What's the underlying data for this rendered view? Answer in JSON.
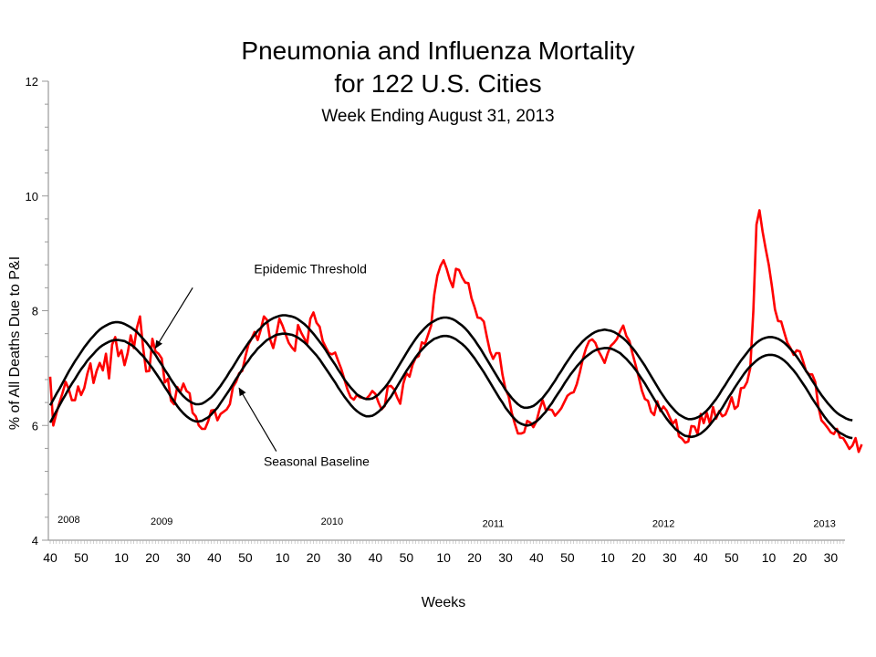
{
  "title_line1": "Pneumonia and Influenza Mortality",
  "title_line2": "for 122 U.S. Cities",
  "subtitle": "Week Ending  August  31, 2013",
  "chart_data": {
    "type": "line",
    "xlabel": "Weeks",
    "ylabel": "% of All Deaths Due to P&I",
    "ylim": [
      4,
      12
    ],
    "yticks": [
      4,
      6,
      8,
      10,
      12
    ],
    "x_start_week": 40,
    "n_weeks": 257,
    "xtick_labels": [
      "40",
      "50",
      "10",
      "20",
      "30",
      "40",
      "50",
      "10",
      "20",
      "30",
      "40",
      "50",
      "10",
      "20",
      "30",
      "40",
      "50",
      "10",
      "20",
      "30",
      "40",
      "50",
      "10",
      "20",
      "30"
    ],
    "xtick_index": [
      0,
      10,
      23,
      33,
      43,
      53,
      63,
      75,
      85,
      95,
      105,
      115,
      127,
      137,
      147,
      157,
      167,
      180,
      190,
      200,
      210,
      220,
      232,
      242,
      252
    ],
    "year_labels": [
      {
        "text": "2008",
        "week_index": 6,
        "y_value": 4.3
      },
      {
        "text": "2009",
        "week_index": 36,
        "y_value": 4.27
      },
      {
        "text": "2010",
        "week_index": 91,
        "y_value": 4.27
      },
      {
        "text": "2011",
        "week_index": 143,
        "y_value": 4.23
      },
      {
        "text": "2012",
        "week_index": 198,
        "y_value": 4.23
      },
      {
        "text": "2013",
        "week_index": 250,
        "y_value": 4.23
      }
    ],
    "annotations": [
      {
        "text": "Epidemic Threshold",
        "label_week": 84,
        "label_y": 8.65,
        "arrow_from": {
          "week": 46,
          "y": 8.4
        },
        "arrow_to": {
          "week": 34,
          "y": 7.35
        }
      },
      {
        "text": "Seasonal Baseline",
        "label_week": 86,
        "label_y": 5.3,
        "arrow_from": {
          "week": 73,
          "y": 5.55
        },
        "arrow_to": {
          "week": 61,
          "y": 6.65
        }
      }
    ],
    "series": [
      {
        "name": "Epidemic Threshold",
        "color": "#000000",
        "values": [
          6.35,
          6.45,
          6.55,
          6.64,
          6.74,
          6.84,
          6.94,
          7.03,
          7.12,
          7.2,
          7.28,
          7.36,
          7.43,
          7.5,
          7.56,
          7.62,
          7.67,
          7.71,
          7.74,
          7.77,
          7.79,
          7.8,
          7.8,
          7.79,
          7.77,
          7.74,
          7.71,
          7.67,
          7.63,
          7.57,
          7.51,
          7.45,
          7.38,
          7.3,
          7.23,
          7.14,
          7.06,
          6.97,
          6.89,
          6.8,
          6.72,
          6.64,
          6.57,
          6.51,
          6.46,
          6.42,
          6.39,
          6.37,
          6.37,
          6.38,
          6.41,
          6.45,
          6.49,
          6.55,
          6.62,
          6.69,
          6.77,
          6.85,
          6.94,
          7.02,
          7.11,
          7.2,
          7.28,
          7.36,
          7.44,
          7.51,
          7.58,
          7.65,
          7.7,
          7.76,
          7.8,
          7.84,
          7.87,
          7.89,
          7.91,
          7.92,
          7.92,
          7.91,
          7.9,
          7.88,
          7.85,
          7.81,
          7.77,
          7.72,
          7.66,
          7.6,
          7.53,
          7.46,
          7.39,
          7.31,
          7.22,
          7.14,
          7.06,
          6.97,
          6.89,
          6.8,
          6.73,
          6.66,
          6.6,
          6.54,
          6.51,
          6.48,
          6.46,
          6.46,
          6.47,
          6.5,
          6.54,
          6.6,
          6.66,
          6.73,
          6.81,
          6.9,
          6.99,
          7.08,
          7.17,
          7.26,
          7.35,
          7.43,
          7.51,
          7.58,
          7.64,
          7.7,
          7.75,
          7.79,
          7.82,
          7.85,
          7.87,
          7.88,
          7.88,
          7.87,
          7.85,
          7.82,
          7.78,
          7.74,
          7.69,
          7.63,
          7.56,
          7.49,
          7.41,
          7.33,
          7.24,
          7.15,
          7.06,
          6.97,
          6.88,
          6.79,
          6.71,
          6.62,
          6.55,
          6.48,
          6.42,
          6.37,
          6.33,
          6.31,
          6.31,
          6.32,
          6.34,
          6.38,
          6.43,
          6.48,
          6.55,
          6.62,
          6.7,
          6.78,
          6.87,
          6.95,
          7.04,
          7.12,
          7.2,
          7.28,
          7.35,
          7.41,
          7.47,
          7.52,
          7.56,
          7.6,
          7.63,
          7.65,
          7.66,
          7.67,
          7.66,
          7.65,
          7.63,
          7.6,
          7.56,
          7.52,
          7.47,
          7.41,
          7.35,
          7.28,
          7.2,
          7.12,
          7.04,
          6.95,
          6.86,
          6.77,
          6.68,
          6.59,
          6.51,
          6.43,
          6.36,
          6.3,
          6.24,
          6.19,
          6.16,
          6.13,
          6.11,
          6.11,
          6.12,
          6.14,
          6.17,
          6.21,
          6.26,
          6.32,
          6.39,
          6.46,
          6.54,
          6.63,
          6.71,
          6.8,
          6.88,
          6.97,
          7.05,
          7.13,
          7.2,
          7.27,
          7.34,
          7.39,
          7.44,
          7.48,
          7.51,
          7.53,
          7.54,
          7.54,
          7.53,
          7.51,
          7.48,
          7.44,
          7.39,
          7.33,
          7.27,
          7.2,
          7.12,
          7.04,
          6.95,
          6.87,
          6.78,
          6.7,
          6.61,
          6.53,
          6.46,
          6.39,
          6.33,
          6.27,
          6.22,
          6.18,
          6.15,
          6.12,
          6.1,
          6.09
        ]
      },
      {
        "name": "Seasonal Baseline",
        "color": "#000000",
        "values": [
          6.05,
          6.15,
          6.25,
          6.35,
          6.45,
          6.54,
          6.64,
          6.73,
          6.81,
          6.9,
          6.98,
          7.05,
          7.13,
          7.19,
          7.25,
          7.31,
          7.36,
          7.4,
          7.43,
          7.46,
          7.48,
          7.49,
          7.49,
          7.48,
          7.47,
          7.44,
          7.41,
          7.37,
          7.32,
          7.26,
          7.21,
          7.14,
          7.07,
          7.0,
          6.92,
          6.84,
          6.76,
          6.67,
          6.59,
          6.5,
          6.42,
          6.34,
          6.27,
          6.21,
          6.16,
          6.12,
          6.09,
          6.07,
          6.07,
          6.08,
          6.11,
          6.14,
          6.19,
          6.25,
          6.31,
          6.39,
          6.47,
          6.55,
          6.63,
          6.72,
          6.81,
          6.89,
          6.98,
          7.06,
          7.13,
          7.21,
          7.27,
          7.34,
          7.39,
          7.44,
          7.49,
          7.52,
          7.55,
          7.58,
          7.59,
          7.6,
          7.6,
          7.59,
          7.58,
          7.56,
          7.53,
          7.49,
          7.45,
          7.4,
          7.34,
          7.28,
          7.22,
          7.15,
          7.07,
          6.99,
          6.91,
          6.83,
          6.75,
          6.66,
          6.58,
          6.5,
          6.43,
          6.36,
          6.3,
          6.25,
          6.21,
          6.18,
          6.16,
          6.16,
          6.17,
          6.2,
          6.24,
          6.29,
          6.35,
          6.43,
          6.5,
          6.59,
          6.68,
          6.77,
          6.86,
          6.95,
          7.03,
          7.11,
          7.19,
          7.26,
          7.32,
          7.38,
          7.43,
          7.47,
          7.51,
          7.53,
          7.55,
          7.56,
          7.56,
          7.55,
          7.53,
          7.5,
          7.46,
          7.42,
          7.37,
          7.31,
          7.24,
          7.17,
          7.09,
          7.01,
          6.93,
          6.84,
          6.75,
          6.66,
          6.57,
          6.48,
          6.4,
          6.31,
          6.24,
          6.17,
          6.11,
          6.06,
          6.03,
          6.01,
          6.0,
          6.01,
          6.04,
          6.07,
          6.12,
          6.18,
          6.24,
          6.32,
          6.39,
          6.48,
          6.56,
          6.64,
          6.73,
          6.81,
          6.89,
          6.96,
          7.03,
          7.09,
          7.15,
          7.2,
          7.24,
          7.28,
          7.31,
          7.33,
          7.34,
          7.35,
          7.35,
          7.34,
          7.32,
          7.29,
          7.26,
          7.21,
          7.16,
          7.1,
          7.04,
          6.97,
          6.89,
          6.81,
          6.73,
          6.64,
          6.55,
          6.46,
          6.37,
          6.28,
          6.2,
          6.12,
          6.05,
          5.99,
          5.93,
          5.89,
          5.85,
          5.82,
          5.81,
          5.8,
          5.81,
          5.83,
          5.86,
          5.9,
          5.95,
          6.01,
          6.08,
          6.15,
          6.23,
          6.31,
          6.4,
          6.49,
          6.57,
          6.66,
          6.74,
          6.82,
          6.9,
          6.97,
          7.03,
          7.08,
          7.13,
          7.17,
          7.2,
          7.22,
          7.23,
          7.23,
          7.22,
          7.2,
          7.17,
          7.13,
          7.08,
          7.02,
          6.96,
          6.89,
          6.81,
          6.73,
          6.65,
          6.56,
          6.47,
          6.39,
          6.31,
          6.23,
          6.15,
          6.08,
          6.02,
          5.96,
          5.91,
          5.87,
          5.84,
          5.81,
          5.79,
          5.78
        ]
      },
      {
        "name": "P&I Mortality",
        "color": "#ff0000",
        "values": [
          6.85,
          6.0,
          6.21,
          6.4,
          6.57,
          6.76,
          6.63,
          6.44,
          6.44,
          6.68,
          6.53,
          6.65,
          6.9,
          7.08,
          6.74,
          6.95,
          7.09,
          6.96,
          7.25,
          6.82,
          7.41,
          7.54,
          7.21,
          7.31,
          7.05,
          7.26,
          7.57,
          7.35,
          7.7,
          7.9,
          7.36,
          6.94,
          6.95,
          7.51,
          7.29,
          7.25,
          7.17,
          6.75,
          6.81,
          6.43,
          6.37,
          6.67,
          6.58,
          6.73,
          6.6,
          6.56,
          6.22,
          6.16,
          6.0,
          5.94,
          5.94,
          6.07,
          6.26,
          6.27,
          6.09,
          6.2,
          6.24,
          6.28,
          6.37,
          6.67,
          6.76,
          6.91,
          6.95,
          7.2,
          7.41,
          7.51,
          7.63,
          7.49,
          7.67,
          7.9,
          7.84,
          7.5,
          7.35,
          7.58,
          7.86,
          7.74,
          7.59,
          7.44,
          7.36,
          7.3,
          7.75,
          7.62,
          7.52,
          7.43,
          7.86,
          7.97,
          7.79,
          7.72,
          7.47,
          7.36,
          7.26,
          7.24,
          7.27,
          7.12,
          6.98,
          6.8,
          6.62,
          6.49,
          6.45,
          6.53,
          6.49,
          6.48,
          6.46,
          6.52,
          6.6,
          6.55,
          6.4,
          6.28,
          6.34,
          6.68,
          6.69,
          6.63,
          6.49,
          6.38,
          6.73,
          6.91,
          6.85,
          7.06,
          7.18,
          7.21,
          7.45,
          7.42,
          7.58,
          7.74,
          8.28,
          8.61,
          8.78,
          8.88,
          8.73,
          8.54,
          8.41,
          8.73,
          8.71,
          8.58,
          8.49,
          8.48,
          8.22,
          8.06,
          7.88,
          7.87,
          7.81,
          7.54,
          7.29,
          7.16,
          7.26,
          7.26,
          6.89,
          6.63,
          6.51,
          6.22,
          6.03,
          5.86,
          5.86,
          5.88,
          6.08,
          6.05,
          5.97,
          6.07,
          6.28,
          6.44,
          6.27,
          6.28,
          6.27,
          6.17,
          6.23,
          6.3,
          6.41,
          6.52,
          6.56,
          6.58,
          6.72,
          6.93,
          7.17,
          7.35,
          7.47,
          7.5,
          7.44,
          7.3,
          7.2,
          7.09,
          7.26,
          7.39,
          7.44,
          7.51,
          7.64,
          7.74,
          7.56,
          7.47,
          7.25,
          7.05,
          6.84,
          6.61,
          6.46,
          6.43,
          6.24,
          6.18,
          6.42,
          6.25,
          6.33,
          6.26,
          6.14,
          6.03,
          6.1,
          5.81,
          5.77,
          5.7,
          5.72,
          5.99,
          5.98,
          5.85,
          6.2,
          6.04,
          6.22,
          6.03,
          6.32,
          6.12,
          6.25,
          6.16,
          6.19,
          6.32,
          6.49,
          6.29,
          6.34,
          6.65,
          6.66,
          6.76,
          7.0,
          8.0,
          9.5,
          9.75,
          9.38,
          9.08,
          8.8,
          8.43,
          8.02,
          7.82,
          7.81,
          7.62,
          7.44,
          7.35,
          7.23,
          7.31,
          7.29,
          7.13,
          6.95,
          6.89,
          6.89,
          6.76,
          6.33,
          6.09,
          6.03,
          5.96,
          5.88,
          5.85,
          5.94,
          5.79,
          5.78,
          5.69,
          5.59,
          5.65,
          5.78,
          5.54,
          5.67
        ]
      }
    ]
  }
}
